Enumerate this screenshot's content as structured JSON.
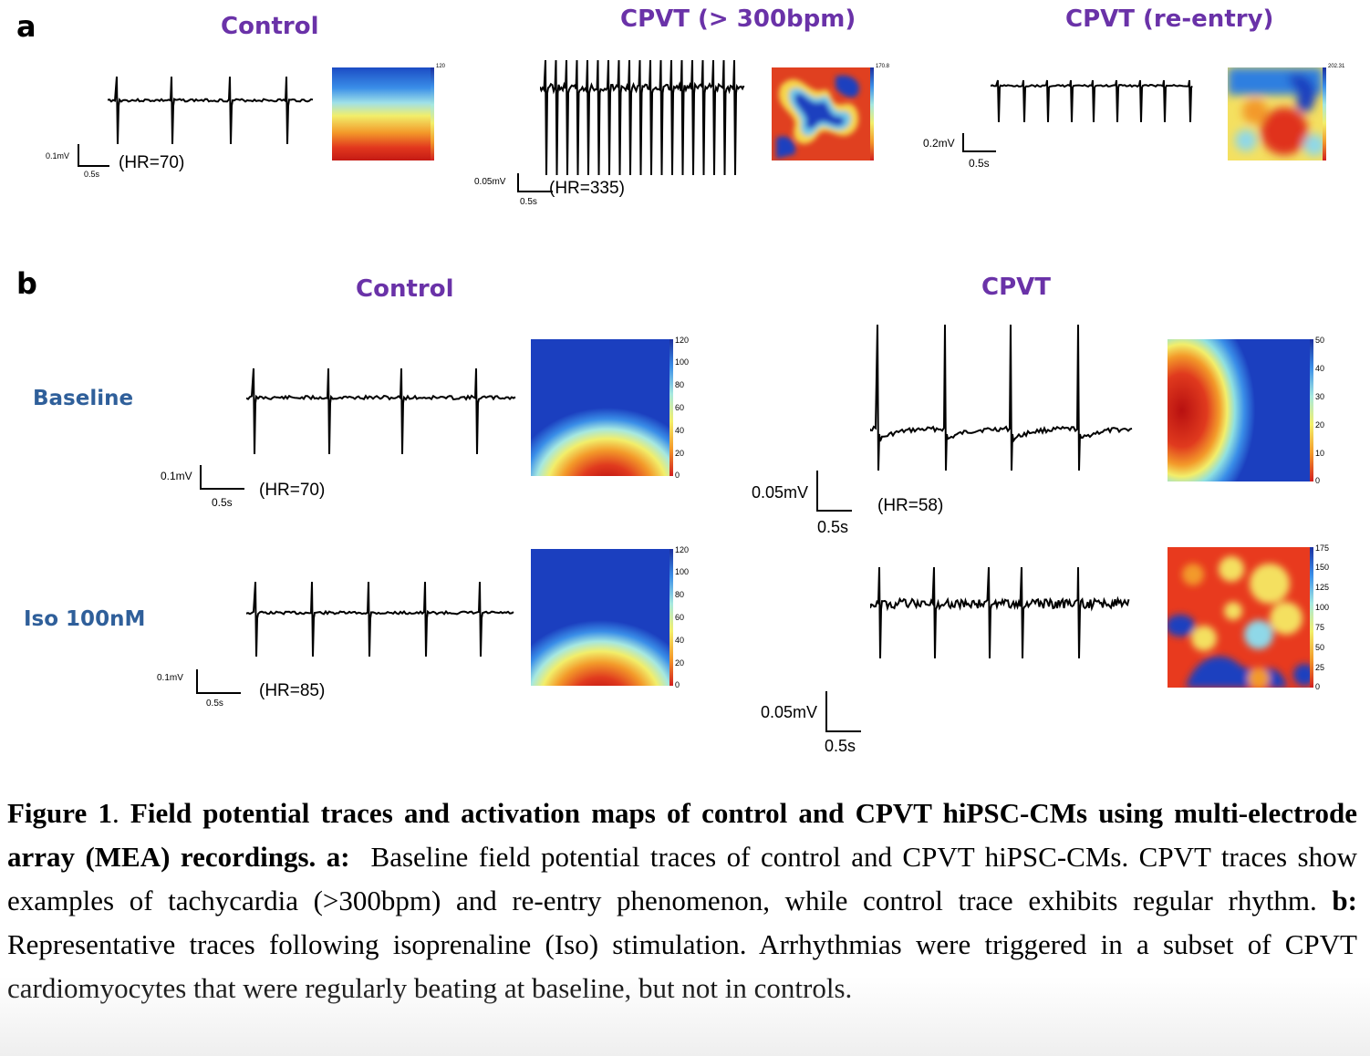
{
  "panel_a": {
    "letter": "a",
    "items": [
      {
        "title": "Control",
        "hr": "(HR=70)",
        "scale_v": "0.1mV",
        "scale_t": "0.5s",
        "colorbar_max": "120"
      },
      {
        "title": "CPVT (> 300bpm)",
        "hr": "(HR=335)",
        "scale_v": "0.05mV",
        "scale_t": "0.5s",
        "colorbar_max": "170.8"
      },
      {
        "title": "CPVT (re-entry)",
        "hr": "",
        "scale_v": "0.2mV",
        "scale_t": "0.5s",
        "colorbar_max": "202.31"
      }
    ]
  },
  "panel_b": {
    "letter": "b",
    "col_control": "Control",
    "col_cpvt": "CPVT",
    "row_baseline": "Baseline",
    "row_iso": "Iso 100nM",
    "control_baseline": {
      "hr": "(HR=70)",
      "scale_v": "0.1mV",
      "scale_t": "0.5s",
      "ticks": [
        "120",
        "100",
        "80",
        "60",
        "40",
        "20",
        "0"
      ]
    },
    "control_iso": {
      "hr": "(HR=85)",
      "scale_v": "0.1mV",
      "scale_t": "0.5s",
      "ticks": [
        "120",
        "100",
        "80",
        "60",
        "40",
        "20",
        "0"
      ]
    },
    "cpvt_baseline": {
      "hr": "(HR=58)",
      "scale_v": "0.05mV",
      "scale_t": "0.5s",
      "ticks": [
        "50",
        "40",
        "30",
        "20",
        "10",
        "0"
      ]
    },
    "cpvt_iso": {
      "scale_v": "0.05mV",
      "scale_t": "0.5s",
      "ticks": [
        "175",
        "150",
        "125",
        "100",
        "75",
        "50",
        "25",
        "0"
      ]
    }
  },
  "caption": {
    "fig_label": "Figure 1",
    "bold_title": "Field potential traces and activation maps of control and CPVT hiPSC-CMs using multi-electrode array (MEA) recordings.",
    "a_label": "a:",
    "a_text": "Baseline field potential traces of control and CPVT hiPSC-CMs. CPVT traces show examples of tachycardia (>300bpm) and re-entry phenomenon, while control trace exhibits regular rhythm.",
    "b_label": "b:",
    "b_text": "Representative traces following isoprenaline (Iso) stimulation. Arrhythmias were triggered in a subset of CPVT cardiomyocytes that were regularly beating at baseline, but not in controls."
  }
}
